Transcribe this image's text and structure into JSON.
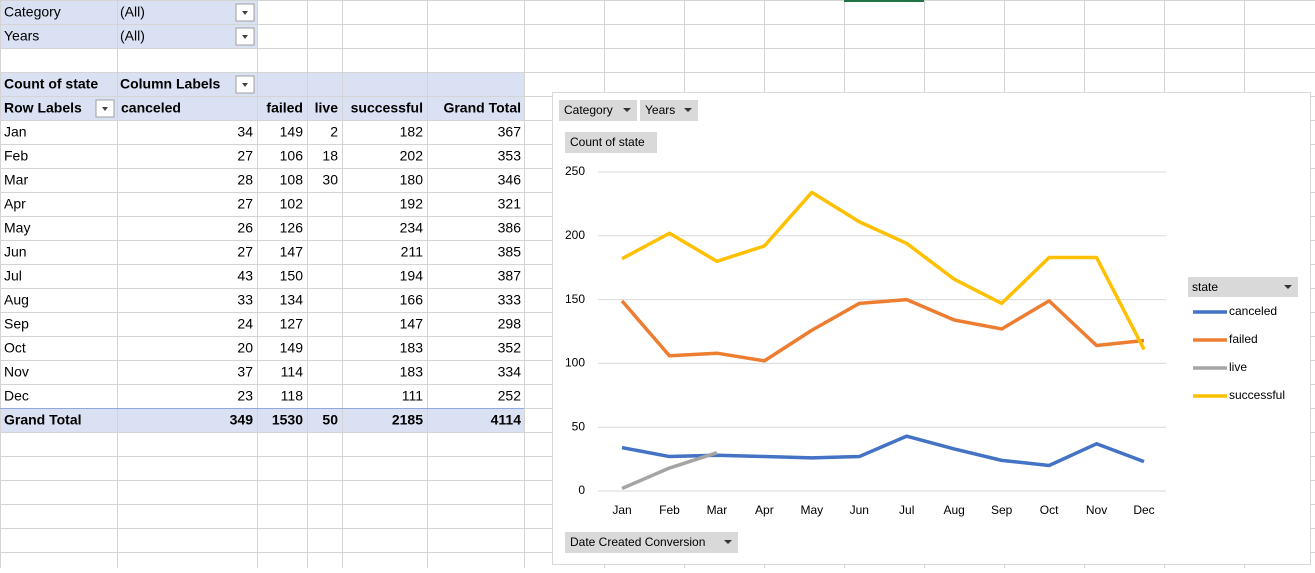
{
  "filters": [
    {
      "field": "Category",
      "value": "(All)"
    },
    {
      "field": "Years",
      "value": "(All)"
    }
  ],
  "pivot": {
    "corner": "Count of state",
    "column_labels": "Column Labels",
    "row_labels": "Row Labels",
    "columns": [
      "canceled",
      "failed",
      "live",
      "successful",
      "Grand Total"
    ],
    "rows": [
      {
        "label": "Jan",
        "values": [
          34,
          149,
          2,
          182,
          367
        ]
      },
      {
        "label": "Feb",
        "values": [
          27,
          106,
          18,
          202,
          353
        ]
      },
      {
        "label": "Mar",
        "values": [
          28,
          108,
          30,
          180,
          346
        ]
      },
      {
        "label": "Apr",
        "values": [
          27,
          102,
          null,
          192,
          321
        ]
      },
      {
        "label": "May",
        "values": [
          26,
          126,
          null,
          234,
          386
        ]
      },
      {
        "label": "Jun",
        "values": [
          27,
          147,
          null,
          211,
          385
        ]
      },
      {
        "label": "Jul",
        "values": [
          43,
          150,
          null,
          194,
          387
        ]
      },
      {
        "label": "Aug",
        "values": [
          33,
          134,
          null,
          166,
          333
        ]
      },
      {
        "label": "Sep",
        "values": [
          24,
          127,
          null,
          147,
          298
        ]
      },
      {
        "label": "Oct",
        "values": [
          20,
          149,
          null,
          183,
          352
        ]
      },
      {
        "label": "Nov",
        "values": [
          37,
          114,
          null,
          183,
          334
        ]
      },
      {
        "label": "Dec",
        "values": [
          23,
          118,
          null,
          111,
          252
        ]
      }
    ],
    "grand_total": {
      "label": "Grand Total",
      "values": [
        349,
        1530,
        50,
        2185,
        4114
      ]
    }
  },
  "chart_data": {
    "type": "line",
    "filter_buttons": [
      "Category",
      "Years"
    ],
    "value_field": "Count of state",
    "axis_field": "Date Created Conversion",
    "legend_title": "state",
    "categories": [
      "Jan",
      "Feb",
      "Mar",
      "Apr",
      "May",
      "Jun",
      "Jul",
      "Aug",
      "Sep",
      "Oct",
      "Nov",
      "Dec"
    ],
    "series": [
      {
        "name": "canceled",
        "color": "#4472c4",
        "values": [
          34,
          27,
          28,
          27,
          26,
          27,
          43,
          33,
          24,
          20,
          37,
          23
        ]
      },
      {
        "name": "failed",
        "color": "#ed7d31",
        "values": [
          149,
          106,
          108,
          102,
          126,
          147,
          150,
          134,
          127,
          149,
          114,
          118
        ]
      },
      {
        "name": "live",
        "color": "#a5a5a5",
        "values": [
          2,
          18,
          30,
          null,
          null,
          null,
          null,
          null,
          null,
          null,
          null,
          null
        ]
      },
      {
        "name": "successful",
        "color": "#ffc000",
        "values": [
          182,
          202,
          180,
          192,
          234,
          211,
          194,
          166,
          147,
          183,
          183,
          111
        ]
      }
    ],
    "ylim": [
      0,
      250
    ],
    "yticks": [
      0,
      50,
      100,
      150,
      200,
      250
    ],
    "grid": true,
    "legend": "right"
  }
}
